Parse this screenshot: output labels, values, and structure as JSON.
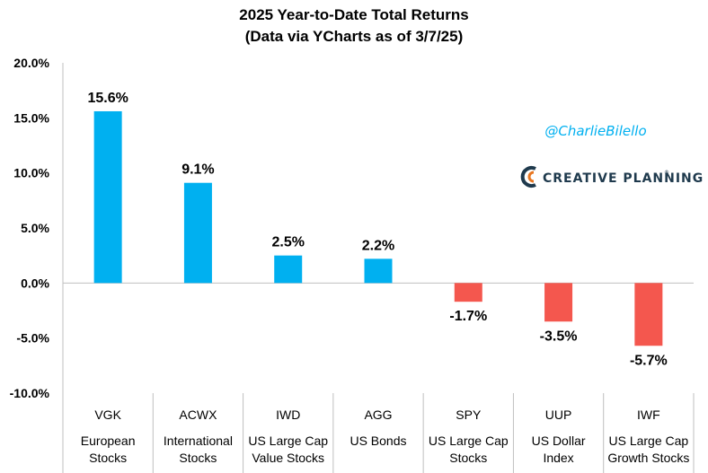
{
  "chart_data": {
    "type": "bar",
    "title": "2025 Year-to-Date Total Returns",
    "subtitle": "(Data via YCharts as of 3/7/25)",
    "xlabel": "",
    "ylabel": "",
    "ylim": [
      -10,
      20
    ],
    "yticks": [
      20,
      15,
      10,
      5,
      0,
      -5,
      -10
    ],
    "ytick_labels": [
      "20.0%",
      "15.0%",
      "10.0%",
      "5.0%",
      "0.0%",
      "-5.0%",
      "-10.0%"
    ],
    "grid": false,
    "categories": [
      "VGK",
      "ACWX",
      "IWD",
      "AGG",
      "SPY",
      "UUP",
      "IWF"
    ],
    "descriptions": [
      [
        "European",
        "Stocks"
      ],
      [
        "International",
        "Stocks"
      ],
      [
        "US Large Cap",
        "Value Stocks"
      ],
      [
        "US Bonds",
        ""
      ],
      [
        "US Large Cap",
        "Stocks"
      ],
      [
        "US Dollar",
        "Index"
      ],
      [
        "US Large Cap",
        "Growth Stocks"
      ]
    ],
    "values": [
      15.6,
      9.1,
      2.5,
      2.2,
      -1.7,
      -3.5,
      -5.7
    ],
    "value_labels": [
      "15.6%",
      "9.1%",
      "2.5%",
      "2.2%",
      "-1.7%",
      "-3.5%",
      "-5.7%"
    ],
    "colors": {
      "positive": "#00B0F0",
      "negative": "#F4574E"
    }
  },
  "watermark": {
    "handle": "@CharlieBilello",
    "handle_color": "#00B0F0",
    "brand": "CREATIVE PLANNING",
    "brand_mark": "®",
    "brand_color": "#1F3A4D"
  }
}
